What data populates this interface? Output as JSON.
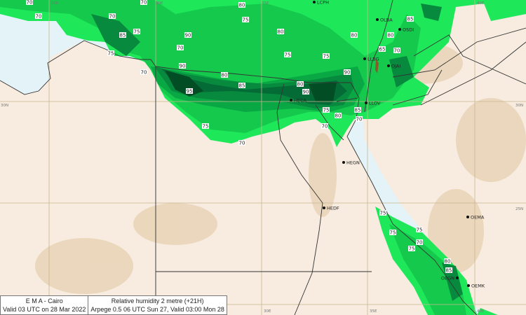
{
  "footer": {
    "left_line1": "E M A  -  Cairo",
    "left_line2": "Valid 03 UTC on 28 Mar 2022",
    "right_line1": "Relative humidity  2 metre (+21H)",
    "right_line2": "Arpege 0.5 06 UTC Sun 27, Valid 03:00 Mon 28"
  },
  "map": {
    "parameter": "Relative humidity 2 metre",
    "colors": {
      "sea": "#e4f3f8",
      "land": "#f7ecdf",
      "desert_relief": "#e6cfae",
      "rh70": "#1ee85a",
      "rh75": "#14c94c",
      "rh80": "#0aa844",
      "rh85": "#078a3e",
      "rh90": "#046b37",
      "rh95": "#024d24",
      "border": "#333333",
      "grid": "#c9b48f"
    },
    "grid_labels": {
      "lon": [
        "25E",
        "30E",
        "35E",
        "40E",
        "30E",
        "35E",
        "40E"
      ],
      "lat": [
        "30N",
        "30N",
        "25N"
      ]
    },
    "stations": [
      "LCPH",
      "OLBA",
      "OSDI",
      "LLBG",
      "OJAI",
      "HECA",
      "LLOV",
      "HEGN",
      "HEDF",
      "OEMA",
      "OEGN",
      "OEMK"
    ],
    "contour_labels": [
      "70",
      "70",
      "85",
      "75",
      "75",
      "70",
      "90",
      "95",
      "80",
      "85",
      "75",
      "70",
      "80",
      "75",
      "75",
      "80",
      "75",
      "90",
      "90",
      "80",
      "75",
      "80",
      "85",
      "70",
      "70",
      "85",
      "80",
      "65",
      "70",
      "90",
      "75",
      "75",
      "75",
      "70",
      "75",
      "80",
      "85",
      "80",
      "70",
      "70",
      "70"
    ]
  }
}
